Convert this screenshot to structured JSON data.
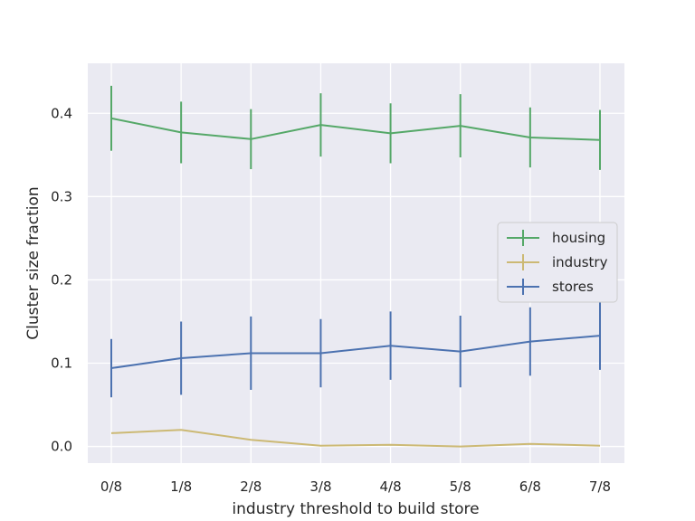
{
  "chart_data": {
    "type": "line",
    "title": "",
    "xlabel": "industry threshold to build store",
    "ylabel": "Cluster size fraction",
    "categories": [
      "0/8",
      "1/8",
      "2/8",
      "3/8",
      "4/8",
      "5/8",
      "6/8",
      "7/8"
    ],
    "ylim": [
      -0.02,
      0.46
    ],
    "yticks": [
      "0.0",
      "0.1",
      "0.2",
      "0.3",
      "0.4"
    ],
    "grid": true,
    "legend_position": "center-right",
    "series": [
      {
        "name": "housing",
        "color": "#55a868",
        "values": [
          0.394,
          0.377,
          0.369,
          0.386,
          0.376,
          0.385,
          0.371,
          0.368
        ],
        "errors": [
          0.039,
          0.037,
          0.036,
          0.038,
          0.036,
          0.038,
          0.036,
          0.036
        ]
      },
      {
        "name": "industry",
        "color": "#ccb974",
        "values": [
          0.016,
          0.02,
          0.008,
          0.001,
          0.002,
          0.0,
          0.003,
          0.001
        ],
        "errors": [
          0.0,
          0.0,
          0.0,
          0.0,
          0.0,
          0.0,
          0.0,
          0.0
        ]
      },
      {
        "name": "stores",
        "color": "#4c72b0",
        "values": [
          0.094,
          0.106,
          0.112,
          0.112,
          0.121,
          0.114,
          0.126,
          0.133
        ],
        "errors": [
          0.035,
          0.044,
          0.044,
          0.041,
          0.041,
          0.043,
          0.041,
          0.041
        ]
      }
    ]
  }
}
